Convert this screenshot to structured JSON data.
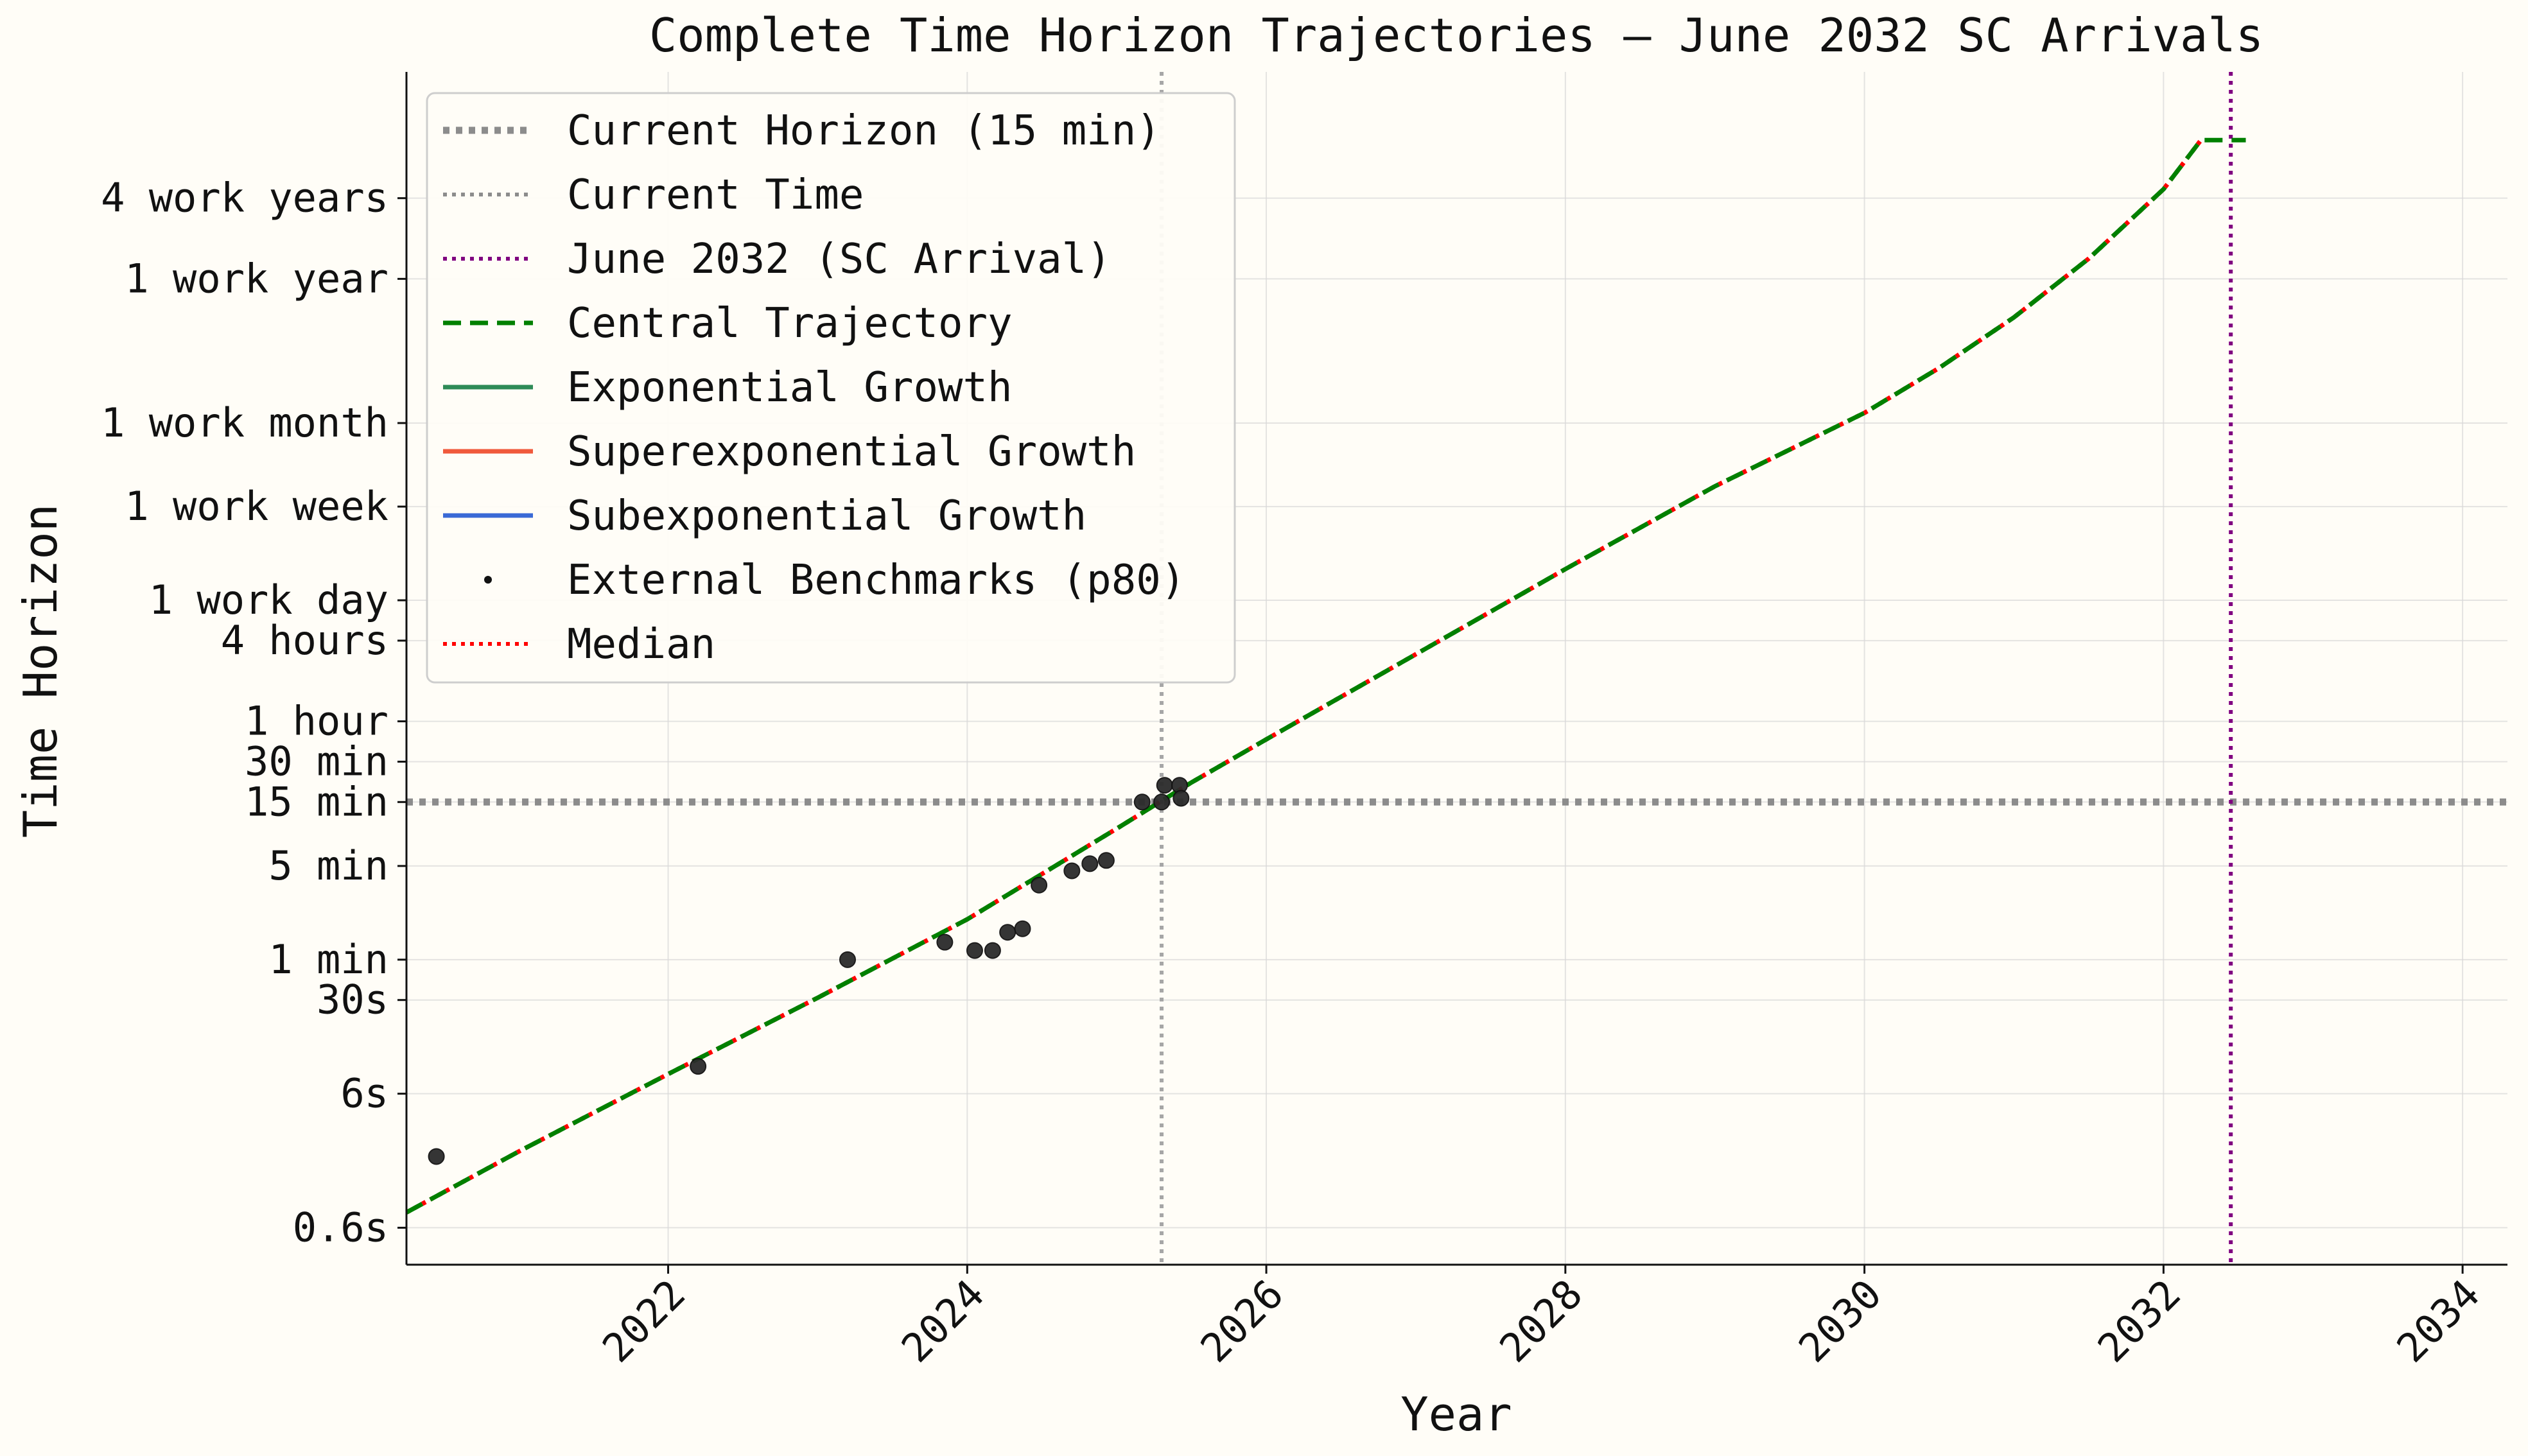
{
  "chart_data": {
    "type": "line",
    "title": "Complete Time Horizon Trajectories — June 2032 SC Arrivals",
    "xlabel": "Year",
    "ylabel": "Time Horizon",
    "y_scale": "log",
    "xlim": [
      2020.25,
      2034.3
    ],
    "ylim_minutes": [
      0.0053,
      4200000
    ],
    "grid": true,
    "legend_placement": "top-left",
    "x_ticks": [
      {
        "value": 2022,
        "label": "2022"
      },
      {
        "value": 2024,
        "label": "2024"
      },
      {
        "value": 2026,
        "label": "2026"
      },
      {
        "value": 2028,
        "label": "2028"
      },
      {
        "value": 2030,
        "label": "2030"
      },
      {
        "value": 2032,
        "label": "2032"
      },
      {
        "value": 2034,
        "label": "2034"
      }
    ],
    "y_ticks": [
      {
        "minutes": 0.01,
        "label": "0.6s"
      },
      {
        "minutes": 0.1,
        "label": "6s"
      },
      {
        "minutes": 0.5,
        "label": "30s"
      },
      {
        "minutes": 1,
        "label": "1 min"
      },
      {
        "minutes": 5,
        "label": "5 min"
      },
      {
        "minutes": 15,
        "label": "15 min"
      },
      {
        "minutes": 30,
        "label": "30 min"
      },
      {
        "minutes": 60,
        "label": "1 hour"
      },
      {
        "minutes": 240,
        "label": "4 hours"
      },
      {
        "minutes": 480,
        "label": "1 work day"
      },
      {
        "minutes": 2400,
        "label": "1 work week"
      },
      {
        "minutes": 10080,
        "label": "1 work month"
      },
      {
        "minutes": 120000,
        "label": "1 work year"
      },
      {
        "minutes": 480000,
        "label": "4 work years"
      }
    ],
    "reference_lines": [
      {
        "name": "Current Horizon (15 min)",
        "orientation": "horizontal",
        "minutes": 15,
        "color": "#8c8c8c",
        "style": "dotted-thick"
      },
      {
        "name": "Current Time",
        "orientation": "vertical",
        "year": 2025.3,
        "color": "#a6a6a6",
        "style": "dotted"
      },
      {
        "name": "June 2032 (SC Arrival)",
        "orientation": "vertical",
        "year": 2032.45,
        "color": "#800080",
        "style": "dotted"
      }
    ],
    "series": [
      {
        "name": "Central Trajectory",
        "color": "#008000",
        "style": "dashed",
        "x": [
          2020.25,
          2021,
          2022,
          2023,
          2024,
          2025,
          2025.5,
          2026,
          2027,
          2028,
          2029,
          2030,
          2030.5,
          2031,
          2031.5,
          2032,
          2032.25,
          2032.55
        ],
        "minutes": [
          0.013,
          0.037,
          0.14,
          0.52,
          2.0,
          9.5,
          21,
          44,
          190,
          820,
          3400,
          12000,
          26000,
          62000,
          170000,
          560000,
          1300000,
          1300000
        ]
      },
      {
        "name": "Exponential Growth",
        "color": "#2e8b57",
        "style": "solid",
        "x": [],
        "minutes": []
      },
      {
        "name": "Superexponential Growth",
        "color": "#f05a3c",
        "style": "solid",
        "x": [],
        "minutes": []
      },
      {
        "name": "Subexponential Growth",
        "color": "#3a6ad6",
        "style": "solid",
        "x": [],
        "minutes": []
      },
      {
        "name": "Median",
        "color": "#ff0000",
        "style": "dotted",
        "x": [
          2020.25,
          2021,
          2022,
          2023,
          2024,
          2025,
          2025.5,
          2026,
          2027,
          2028,
          2029,
          2030,
          2030.5,
          2031,
          2031.5,
          2032,
          2032.25
        ],
        "minutes": [
          0.013,
          0.037,
          0.14,
          0.52,
          2.0,
          9.5,
          21,
          44,
          190,
          820,
          3400,
          12000,
          26000,
          62000,
          170000,
          560000,
          1300000
        ]
      }
    ],
    "scatter": {
      "name": "External Benchmarks (p80)",
      "color": "#2b2b2b",
      "points": [
        {
          "x": 2020.45,
          "minutes": 0.034
        },
        {
          "x": 2022.2,
          "minutes": 0.16
        },
        {
          "x": 2023.2,
          "minutes": 1.0
        },
        {
          "x": 2023.85,
          "minutes": 1.35
        },
        {
          "x": 2024.05,
          "minutes": 1.17
        },
        {
          "x": 2024.17,
          "minutes": 1.17
        },
        {
          "x": 2024.27,
          "minutes": 1.6
        },
        {
          "x": 2024.37,
          "minutes": 1.7
        },
        {
          "x": 2024.48,
          "minutes": 3.6
        },
        {
          "x": 2024.7,
          "minutes": 4.6
        },
        {
          "x": 2024.82,
          "minutes": 5.2
        },
        {
          "x": 2024.93,
          "minutes": 5.5
        },
        {
          "x": 2025.17,
          "minutes": 15
        },
        {
          "x": 2025.3,
          "minutes": 15
        },
        {
          "x": 2025.32,
          "minutes": 20
        },
        {
          "x": 2025.42,
          "minutes": 20
        },
        {
          "x": 2025.43,
          "minutes": 16
        }
      ]
    },
    "legend": [
      {
        "label": "Current Horizon (15 min)",
        "color": "#8c8c8c",
        "kind": "dotted-thick"
      },
      {
        "label": "Current Time",
        "color": "#8c8c8c",
        "kind": "dotted"
      },
      {
        "label": "June 2032 (SC Arrival)",
        "color": "#800080",
        "kind": "dotted"
      },
      {
        "label": "Central Trajectory",
        "color": "#008000",
        "kind": "dashed"
      },
      {
        "label": "Exponential Growth",
        "color": "#2e8b57",
        "kind": "solid"
      },
      {
        "label": "Superexponential Growth",
        "color": "#f05a3c",
        "kind": "solid"
      },
      {
        "label": "Subexponential Growth",
        "color": "#3a6ad6",
        "kind": "solid"
      },
      {
        "label": "External Benchmarks (p80)",
        "color": "#111111",
        "kind": "dot"
      },
      {
        "label": "Median",
        "color": "#ff0000",
        "kind": "dotted"
      }
    ]
  }
}
